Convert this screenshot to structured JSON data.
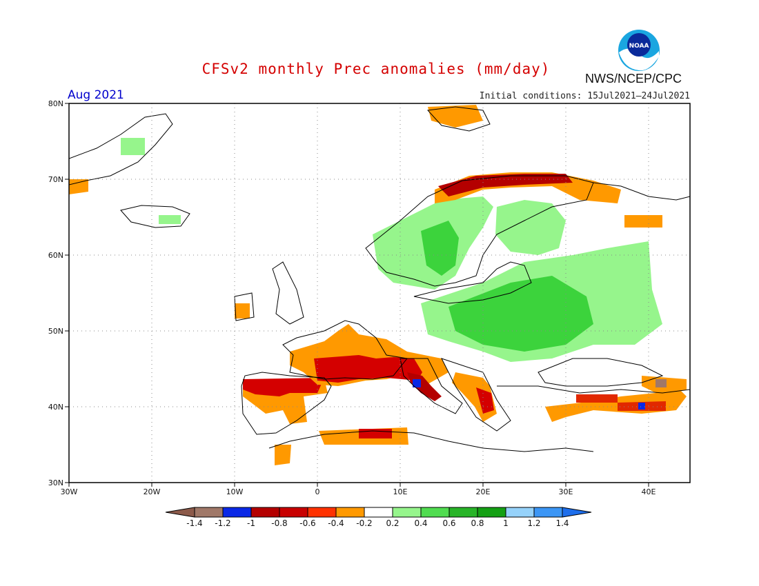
{
  "header": {
    "title": "CFSv2 monthly Prec anomalies (mm/day)",
    "month": "Aug 2021",
    "initial_conditions": "Initial conditions: 15Jul2021–24Jul2021",
    "org": "NWS/NCEP/CPC",
    "logo_text": "NOAA"
  },
  "map": {
    "lon_range": [
      -30,
      45
    ],
    "lat_range": [
      30,
      80
    ],
    "lat_ticks": [
      "30N",
      "40N",
      "50N",
      "60N",
      "70N",
      "80N"
    ],
    "lon_ticks": [
      "30W",
      "20W",
      "10W",
      "0",
      "10E",
      "20E",
      "30E",
      "40E"
    ],
    "gridlines": true,
    "anomaly_regions": [
      {
        "name": "Iberia",
        "level": "dry-mod",
        "color": "#ff9900"
      },
      {
        "name": "France-N.Italy",
        "level": "dry-strong",
        "color": "#d40000"
      },
      {
        "name": "Baltic-E.Europe",
        "level": "wet-mod",
        "color": "#3cd33c"
      },
      {
        "name": "Scandinavia",
        "level": "wet-light",
        "color": "#96f58c"
      },
      {
        "name": "N.Norway coast",
        "level": "dry-strong",
        "color": "#b40000"
      },
      {
        "name": "N.Africa",
        "level": "dry-mod",
        "color": "#ff9900"
      },
      {
        "name": "Turkey",
        "level": "dry-strong",
        "color": "#e12800"
      }
    ]
  },
  "colorbar": {
    "labels": [
      "-1.4",
      "-1.2",
      "-1",
      "-0.8",
      "-0.6",
      "-0.4",
      "-0.2",
      "0.2",
      "0.4",
      "0.6",
      "0.8",
      "1",
      "1.2",
      "1.4"
    ],
    "colors": [
      "#8c5a4a",
      "#a07868",
      "#0a28e6",
      "#b40000",
      "#c80000",
      "#ff3200",
      "#ff9900",
      "#ffffff",
      "#96f58c",
      "#50dc50",
      "#28b428",
      "#14a014",
      "#96d2fa",
      "#3c96f5",
      "#1e6eeb"
    ]
  }
}
